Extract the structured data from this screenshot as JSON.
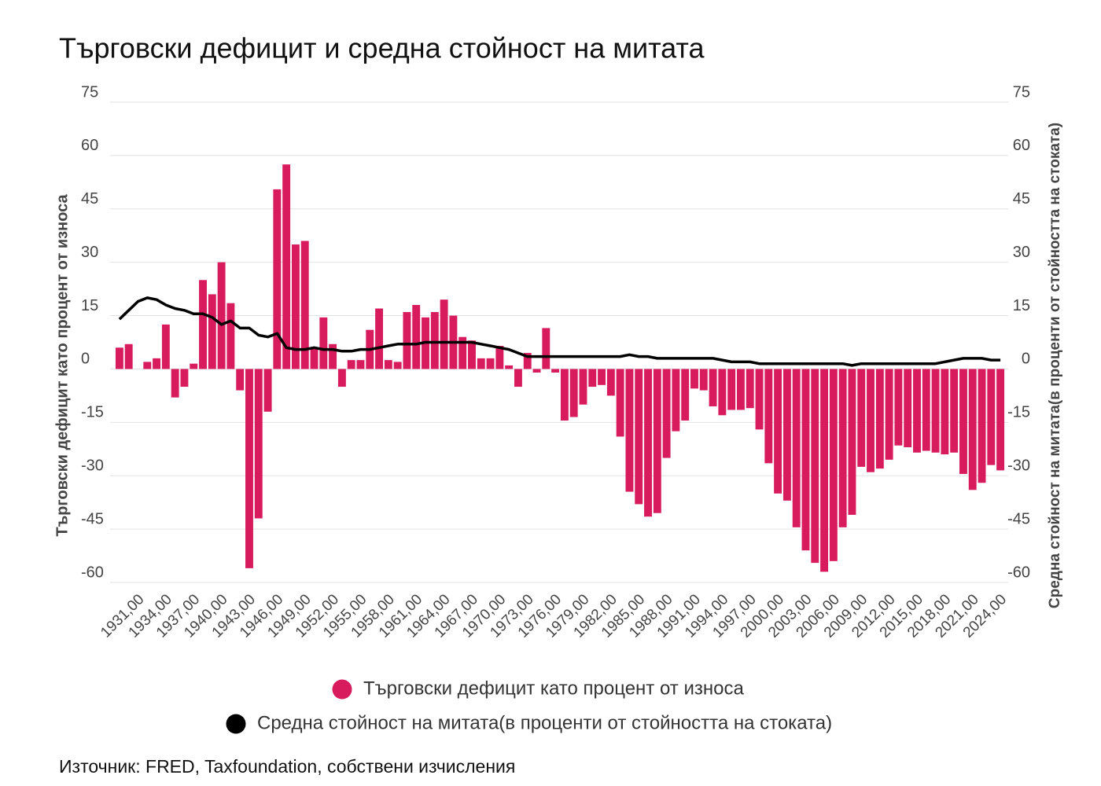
{
  "chart_data": {
    "type": "bar",
    "title": "Търговски дефицит и средна стойност на митата",
    "y_label": "Търговски дефицит като процент от износа",
    "y2_label": "Средна стойност на митата(в проценти от стойността на стоката)",
    "source": "Източник: FRED, Taxfoundation, собствени изчисления",
    "categories": [
      null,
      null,
      "1931,00",
      null,
      null,
      "1934,00",
      null,
      null,
      "1937,00",
      null,
      null,
      "1940,00",
      null,
      null,
      "1943,00",
      null,
      null,
      "1946,00",
      null,
      null,
      "1949,00",
      null,
      null,
      "1952,00",
      null,
      null,
      "1955,00",
      null,
      null,
      "1958,00",
      null,
      null,
      "1961,00",
      null,
      null,
      "1964,00",
      null,
      null,
      "1967,00",
      null,
      null,
      "1970,00",
      null,
      null,
      "1973,00",
      null,
      null,
      "1976,00",
      null,
      null,
      "1979,00",
      null,
      null,
      "1982,00",
      null,
      null,
      "1985,00",
      null,
      null,
      "1988,00",
      null,
      null,
      "1991,00",
      null,
      null,
      "1994,00",
      null,
      null,
      "1997,00",
      null,
      null,
      "2000,00",
      null,
      null,
      "2003,00",
      null,
      null,
      "2006,00",
      null,
      null,
      "2009,00",
      null,
      null,
      "2012,00",
      null,
      null,
      "2015,00",
      null,
      null,
      "2018,00",
      null,
      null,
      "2021,00",
      null,
      null,
      "2024,00"
    ],
    "series": [
      {
        "name": "Търговски дефицит като процент от износа",
        "type": "bar",
        "color": "#d81b5c",
        "values": [
          6,
          7,
          0,
          2,
          3,
          12.5,
          -8,
          -5,
          1.5,
          25,
          21,
          30,
          18.5,
          -6,
          -56,
          -42,
          -12,
          50.5,
          57.5,
          35,
          36,
          6,
          14.5,
          7,
          -5,
          2.5,
          2.5,
          11,
          17,
          2.5,
          2,
          16,
          18,
          14.5,
          16,
          19.5,
          15,
          9,
          8,
          3,
          3,
          6.5,
          1,
          -5,
          4.5,
          -1,
          11.5,
          -1,
          -14.5,
          -13.5,
          -10,
          -5,
          -4.5,
          -7.5,
          -19,
          -34.5,
          -38,
          -41.5,
          -40.5,
          -25,
          -17.5,
          -14.5,
          -5.5,
          -6,
          -10.5,
          -13,
          -11.5,
          -11.5,
          -11,
          -17,
          -26.5,
          -35,
          -37,
          -44.5,
          -51,
          -54.5,
          -57,
          -54,
          -44.5,
          -41,
          -27.5,
          -29,
          -28,
          -25.5,
          -21.5,
          -22,
          -23.5,
          -23,
          -23.5,
          -24,
          -23.5,
          -29.5,
          -34,
          -32,
          -27,
          -28.5
        ]
      },
      {
        "name": "Средна стойност на митата(в проценти от стойността на стоката)",
        "type": "line",
        "axis": "y2",
        "color": "#000000",
        "values": [
          14,
          16.5,
          19,
          20,
          19.5,
          18,
          17,
          16.5,
          15.5,
          15.5,
          14.5,
          12.5,
          13.5,
          11.5,
          11.5,
          9.5,
          9,
          10,
          6,
          5.5,
          5.5,
          6,
          5.5,
          5.5,
          5,
          5,
          5.5,
          5.5,
          6,
          6.5,
          7,
          7,
          7,
          7.5,
          7.5,
          7.5,
          7.5,
          7.5,
          7.5,
          7,
          6.5,
          6,
          5.5,
          4.5,
          3.5,
          3.5,
          3.5,
          3.5,
          3.5,
          3.5,
          3.5,
          3.5,
          3.5,
          3.5,
          3.5,
          4,
          3.5,
          3.5,
          3,
          3,
          3,
          3,
          3,
          3,
          3,
          2.5,
          2,
          2,
          2,
          1.5,
          1.5,
          1.5,
          1.5,
          1.5,
          1.5,
          1.5,
          1.5,
          1.5,
          1.5,
          1,
          1.5,
          1.5,
          1.5,
          1.5,
          1.5,
          1.5,
          1.5,
          1.5,
          1.5,
          2,
          2.5,
          3,
          3,
          3,
          2.5,
          2.5
        ]
      }
    ],
    "ylim": [
      -60,
      75
    ],
    "yticks": [
      75,
      60,
      45,
      30,
      15,
      0,
      -15,
      -30,
      -45,
      -60
    ],
    "y2lim": [
      -60,
      75
    ],
    "y2ticks": [
      75,
      60,
      45,
      30,
      15,
      0,
      -15,
      -30,
      -45,
      -60
    ],
    "grid": true
  }
}
